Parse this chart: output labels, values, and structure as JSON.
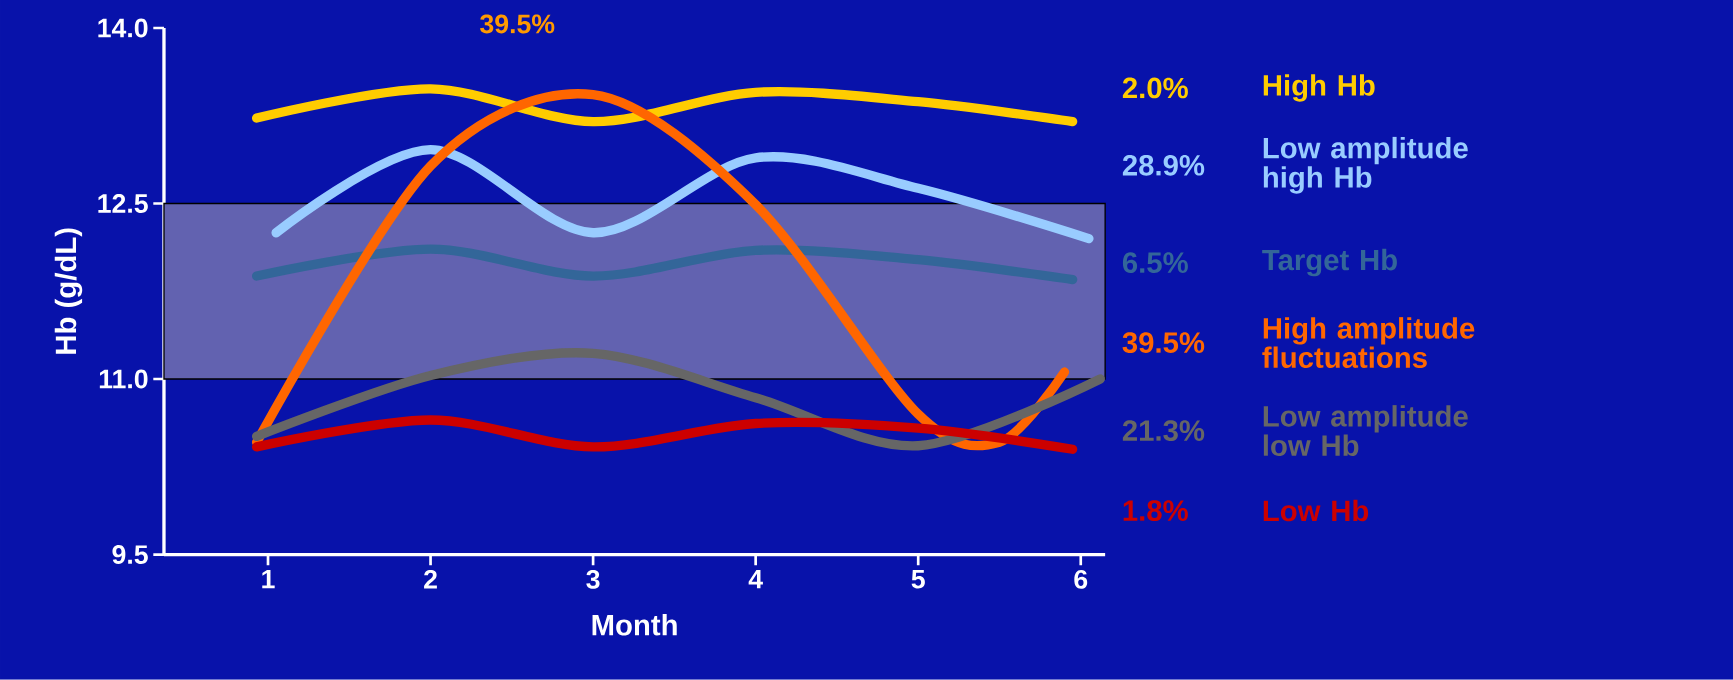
{
  "chart_data": {
    "type": "line",
    "xlabel": "Month",
    "ylabel": "Hb (g/dL)",
    "xlim": [
      0.36,
      6.15
    ],
    "ylim": [
      9.5,
      14.0
    ],
    "xticks": [
      1,
      2,
      3,
      4,
      5,
      6
    ],
    "yticks": [
      {
        "value": 9.5,
        "label": "9.5"
      },
      {
        "value": 11.0,
        "label": "11.0"
      },
      {
        "value": 12.5,
        "label": "12.5"
      },
      {
        "value": 14.0,
        "label": "14.0"
      }
    ],
    "grid": false,
    "legend": "right",
    "marker": "none",
    "line_style": "solid",
    "bands": [
      {
        "axis": "y",
        "from": 11.0,
        "to": 12.5,
        "color": "#6262b0"
      }
    ],
    "series": [
      {
        "name": "High Hb",
        "color": "#ffcc00",
        "x": [
          0.93,
          2,
          3,
          4,
          5,
          5.95
        ],
        "values": [
          13.23,
          13.48,
          13.2,
          13.45,
          13.37,
          13.2
        ]
      },
      {
        "name": "Low amplitude high Hb",
        "color": "#99ccff",
        "x": [
          1.05,
          2,
          3,
          4,
          5,
          6.05
        ],
        "values": [
          12.25,
          12.96,
          12.25,
          12.89,
          12.63,
          12.2
        ]
      },
      {
        "name": "Target Hb",
        "color": "#336699",
        "x": [
          0.93,
          2,
          3,
          4,
          5,
          5.95
        ],
        "values": [
          11.88,
          12.11,
          11.88,
          12.1,
          12.02,
          11.85
        ]
      },
      {
        "name": "High amplitude fluctuations",
        "color": "#ff6600",
        "x": [
          0.93,
          2,
          3,
          4,
          5,
          5.5,
          5.9
        ],
        "values": [
          10.46,
          12.82,
          13.43,
          12.49,
          10.7,
          10.46,
          11.06
        ]
      },
      {
        "name": "Low amplitude low Hb",
        "color": "#666666",
        "x": [
          0.93,
          2,
          3,
          4,
          5,
          6.12
        ],
        "values": [
          10.51,
          11.03,
          11.22,
          10.84,
          10.43,
          11.0
        ]
      },
      {
        "name": "Low Hb",
        "color": "#cc0000",
        "x": [
          0.93,
          2,
          3,
          4,
          5,
          5.95
        ],
        "values": [
          10.42,
          10.65,
          10.42,
          10.62,
          10.58,
          10.4
        ]
      }
    ],
    "annotations": [
      "2.0%",
      "28.9%",
      "6.5%",
      "39.5%",
      "21.3%",
      "1.8%",
      "39.5%"
    ]
  }
}
